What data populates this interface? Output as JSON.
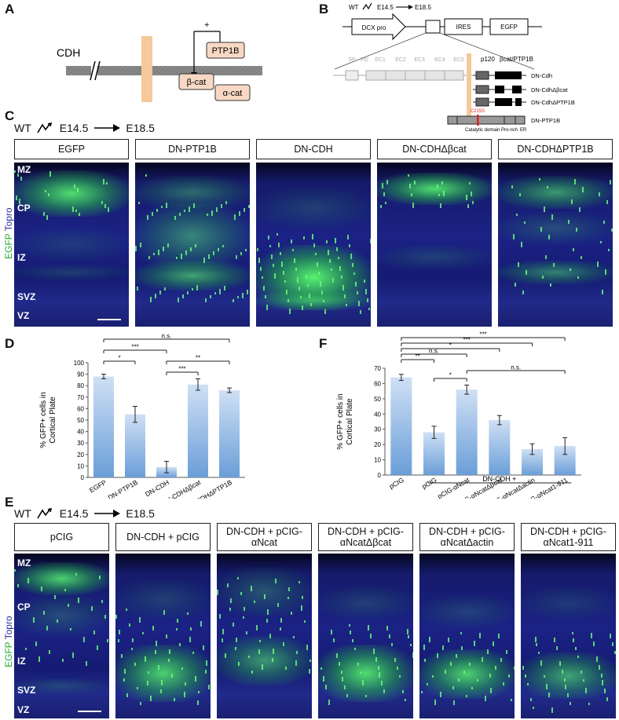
{
  "panels": {
    "A": "A",
    "B": "B",
    "C": "C",
    "D": "D",
    "E": "E",
    "F": "F"
  },
  "panelA": {
    "cdh": "CDH",
    "ptp1b": "PTP1B",
    "bcat": "β-cat",
    "acat": "α-cat",
    "plus": "+"
  },
  "panelB": {
    "wt": "WT",
    "e145": "E14.5",
    "e185": "E18.5",
    "dcx": "DCX pro",
    "ires": "IRES",
    "egfp": "EGFP",
    "domains": [
      "SP",
      "PD",
      "EC1",
      "EC2",
      "EC3",
      "EC4",
      "EC5"
    ],
    "p120": "p120",
    "bcatptp": "βcat/PTP1B",
    "constructs": [
      "DN-Cdh",
      "DN-CdhΔβcat",
      "DN-CdhΔPTP1B"
    ],
    "ptp": "DN-PTP1B",
    "mutation": "C215S",
    "ptp_domains": [
      "Catalytic domain",
      "Pro-rich",
      "ER"
    ]
  },
  "timeline": {
    "wt": "WT",
    "start": "E14.5",
    "end": "E18.5"
  },
  "panelC": {
    "headers": [
      "EGFP",
      "DN-PTP1B",
      "DN-CDH",
      "DN-CDHΔβcat",
      "DN-CDHΔPTP1B"
    ],
    "layers": [
      "MZ",
      "CP",
      "IZ",
      "SVZ",
      "VZ"
    ],
    "side_green": "EGFP",
    "side_blue": "Topro"
  },
  "panelE": {
    "headers": [
      "pCIG",
      "DN-CDH + pCIG",
      "DN-CDH + pCIG-αNcat",
      "DN-CDH + pCIG-αNcatΔβcat",
      "DN-CDH + pCIG-αNcatΔactin",
      "DN-CDH + pCIG-αNcat1-911"
    ],
    "layers": [
      "MZ",
      "CP",
      "IZ",
      "SVZ",
      "VZ"
    ],
    "side_green": "EGFP",
    "side_blue": "Topro"
  },
  "colors": {
    "bar": "#6a9ed8",
    "egfp": "#39e04b",
    "tissue": "#13175f",
    "membrane": "#f5c99a",
    "box": "#f8d8c4"
  },
  "chart_data": [
    {
      "type": "bar",
      "panel": "D",
      "categories": [
        "EGFP",
        "DN-PTP1B",
        "DN-CDH",
        "DN-CDHΔβcat",
        "DN-CDHΔPTP1B"
      ],
      "values": [
        88,
        55,
        9,
        81,
        76
      ],
      "errors": [
        2,
        7,
        5,
        5,
        2
      ],
      "ylabel": "% GFP+ cells in Cortical Plate",
      "ylim": [
        0,
        100
      ],
      "yticks": [
        0,
        10,
        20,
        30,
        40,
        50,
        60,
        70,
        80,
        90,
        100
      ],
      "significance": [
        {
          "a": 0,
          "b": 1,
          "label": "*"
        },
        {
          "a": 0,
          "b": 2,
          "label": "***"
        },
        {
          "a": 0,
          "b": 4,
          "label": "n.s."
        },
        {
          "a": 2,
          "b": 3,
          "label": "***"
        },
        {
          "a": 2,
          "b": 4,
          "label": "**"
        }
      ]
    },
    {
      "type": "bar",
      "panel": "F",
      "categories": [
        "pCIG",
        "pCIG",
        "pCIG-αNcat",
        "pCIG-αNcatΔβcat",
        "pCIG-αNcatΔactin",
        "pCIG-αNcat1-911"
      ],
      "group_label": "DN-CDH +",
      "values": [
        64,
        28,
        56,
        36,
        17,
        19
      ],
      "errors": [
        2,
        4,
        3,
        3,
        3.5,
        5.5
      ],
      "ylabel": "% GFP+ cells in Cortical Plate",
      "ylim": [
        0,
        70
      ],
      "yticks": [
        0,
        10,
        20,
        30,
        40,
        50,
        60,
        70
      ],
      "significance": [
        {
          "a": 0,
          "b": 5,
          "label": "***"
        },
        {
          "a": 0,
          "b": 4,
          "label": "***"
        },
        {
          "a": 0,
          "b": 3,
          "label": "*"
        },
        {
          "a": 0,
          "b": 2,
          "label": "n.s."
        },
        {
          "a": 0,
          "b": 1,
          "label": "**"
        },
        {
          "a": 1,
          "b": 2,
          "label": "*"
        },
        {
          "a": 2,
          "b": 5,
          "label": "n.s."
        }
      ]
    }
  ]
}
